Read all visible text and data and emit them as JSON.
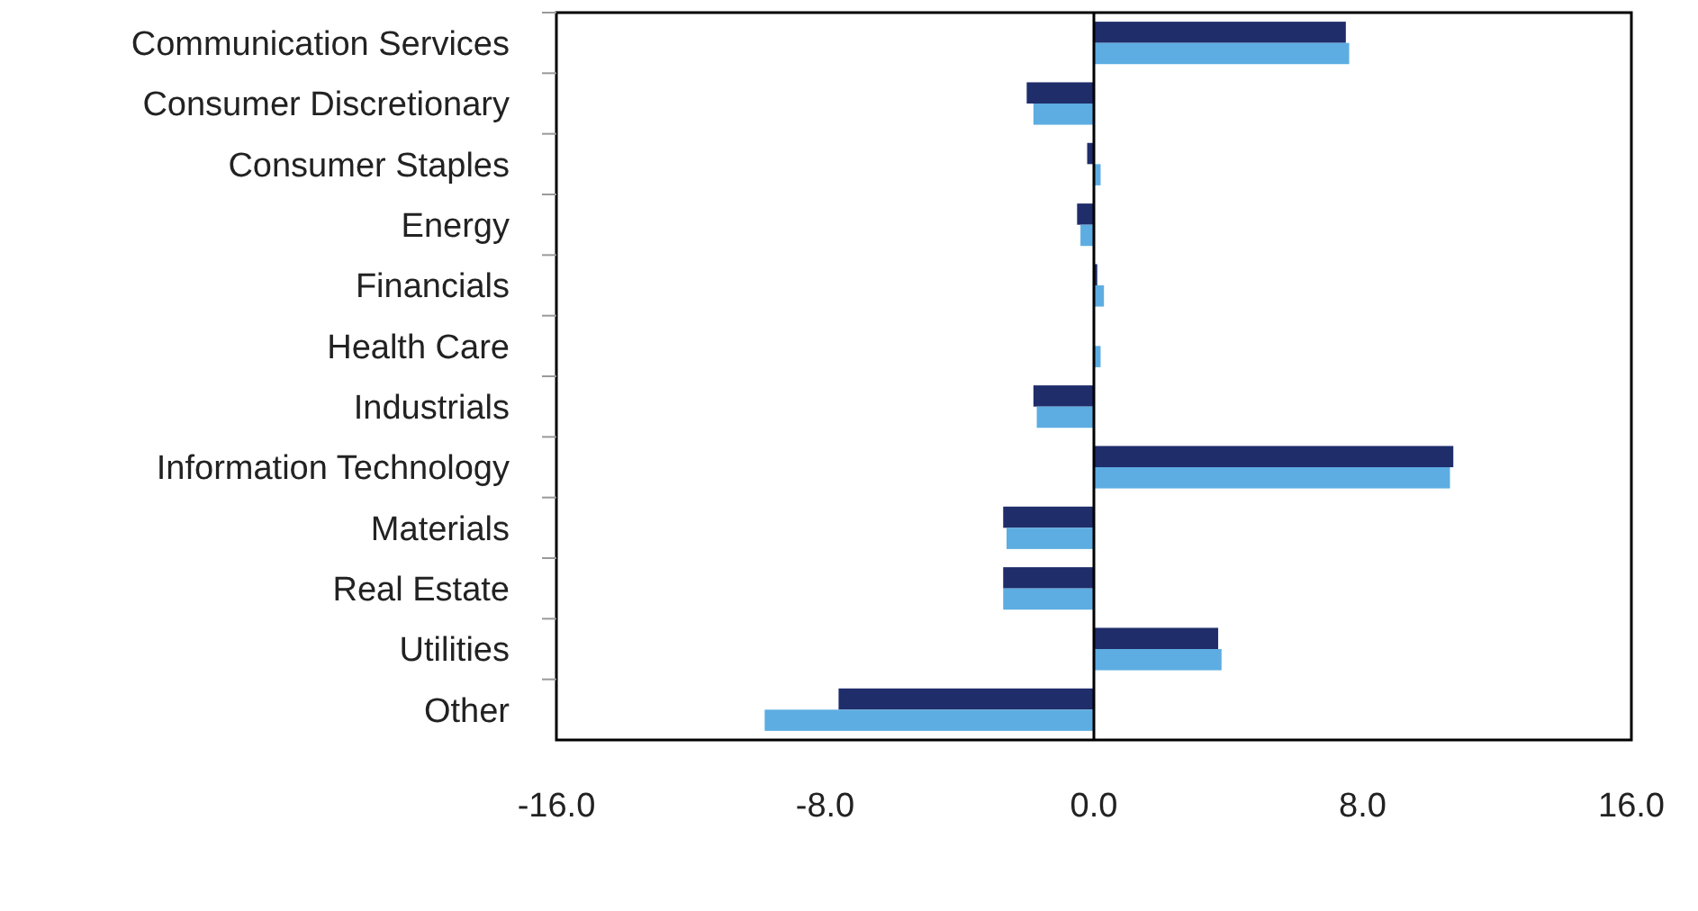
{
  "chart_data": {
    "type": "bar",
    "orientation": "horizontal",
    "categories": [
      "Communication Services",
      "Consumer Discretionary",
      "Consumer Staples",
      "Energy",
      "Financials",
      "Health Care",
      "Industrials",
      "Information Technology",
      "Materials",
      "Real Estate",
      "Utilities",
      "Other"
    ],
    "series": [
      {
        "color": "#1f2d6b",
        "values": [
          7.5,
          -2.0,
          -0.2,
          -0.5,
          0.1,
          0.0,
          -1.8,
          10.7,
          -2.7,
          -2.7,
          3.7,
          -7.6
        ]
      },
      {
        "color": "#5dade2",
        "values": [
          7.6,
          -1.8,
          0.2,
          -0.4,
          0.3,
          0.2,
          -1.7,
          10.6,
          -2.6,
          -2.7,
          3.8,
          -9.8
        ]
      }
    ],
    "xlim": [
      -16,
      16
    ],
    "xticks": [
      {
        "value": -16,
        "label": "-16.0"
      },
      {
        "value": -8,
        "label": "-8.0"
      },
      {
        "value": 0,
        "label": "0.0"
      },
      {
        "value": 8,
        "label": "8.0"
      },
      {
        "value": 16,
        "label": "16.0"
      }
    ]
  }
}
